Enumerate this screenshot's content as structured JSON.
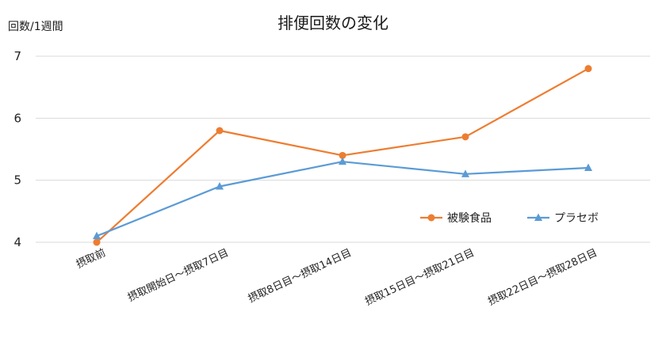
{
  "chart_data": {
    "type": "line",
    "title": "排便回数の変化",
    "ylabel": "回数/1週間",
    "xlabel": "",
    "categories": [
      "摂取前",
      "摂取開始日～摂取7日目",
      "摂取8日目～摂取14日目",
      "摂取15日目～摂取21日目",
      "摂取22日目～摂取28日目"
    ],
    "ylim": [
      4,
      7
    ],
    "yticks": [
      "4",
      "5",
      "6",
      "7"
    ],
    "grid": true,
    "legend_position": "right",
    "series": [
      {
        "name": "被験食品",
        "values": [
          4.0,
          5.8,
          5.4,
          5.7,
          6.8
        ],
        "color": "#ed7d31",
        "marker": "circle"
      },
      {
        "name": "プラセボ",
        "values": [
          4.1,
          4.9,
          5.3,
          5.1,
          5.2
        ],
        "color": "#5b9bd5",
        "marker": "triangle"
      }
    ]
  }
}
